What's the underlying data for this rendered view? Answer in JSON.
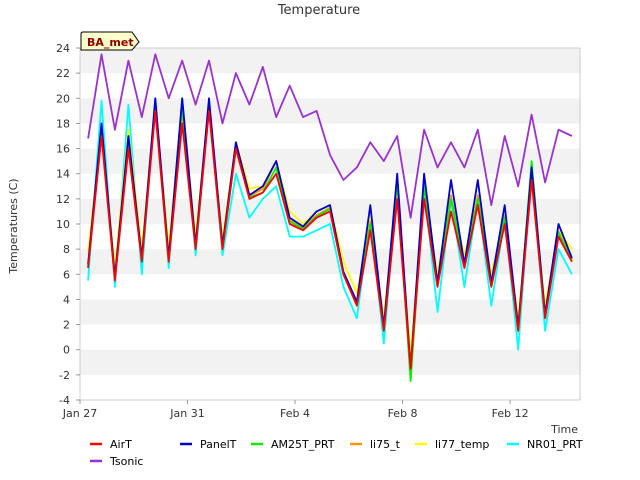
{
  "chart_data": {
    "type": "line",
    "title": "Temperature",
    "xlabel": "Time",
    "ylabel": "Temperatures (C)",
    "badge": "BA_met",
    "ylim": [
      -4,
      24
    ],
    "yticks": [
      -4,
      -2,
      0,
      2,
      4,
      6,
      8,
      10,
      12,
      14,
      16,
      18,
      20,
      22,
      24
    ],
    "xlim": [
      0,
      18.6
    ],
    "xticks": [
      {
        "value": 0,
        "label": "Jan 27"
      },
      {
        "value": 4,
        "label": "Jan 31"
      },
      {
        "value": 8,
        "label": "Feb 4"
      },
      {
        "value": 12,
        "label": "Feb 8"
      },
      {
        "value": 16,
        "label": "Feb 12"
      }
    ],
    "grid": "horizontal bands",
    "legend_position": "bottom",
    "x_start": 0.3,
    "x_step": 0.5,
    "series": [
      {
        "name": "AirT",
        "color": "#ff0000",
        "values": [
          6.5,
          17,
          5.5,
          16,
          7,
          19,
          7,
          18,
          8,
          19,
          8,
          16,
          12,
          12.5,
          14,
          10,
          9.5,
          10.5,
          11,
          6,
          3.5,
          9.5,
          1.5,
          12,
          -1.5,
          12,
          5,
          11,
          6.5,
          11.5,
          5,
          10,
          1.5,
          13.5,
          2.5,
          9,
          7
        ]
      },
      {
        "name": "PanelT",
        "color": "#0000cc",
        "values": [
          6.8,
          18,
          5.8,
          17,
          7.3,
          20,
          7.3,
          20,
          8.3,
          20,
          8.3,
          16.5,
          12.3,
          13,
          15,
          10.5,
          9.8,
          11,
          11.5,
          6.2,
          3.8,
          11.5,
          1.8,
          14,
          -1.5,
          14,
          5.3,
          13.5,
          6.8,
          13.5,
          5.3,
          11.5,
          1.8,
          14.5,
          2.8,
          10,
          7.3
        ]
      },
      {
        "name": "AM25T_PRT",
        "color": "#00ee00",
        "values": [
          6.6,
          17.5,
          5.6,
          16.5,
          7.1,
          19.5,
          7.1,
          19.5,
          8.1,
          19.5,
          8.1,
          16,
          12.1,
          12.5,
          14.5,
          10.2,
          9.6,
          10.6,
          11.2,
          6,
          3.5,
          10,
          1.6,
          13.5,
          -2.5,
          13,
          5.1,
          12,
          6.6,
          12,
          5.1,
          10.5,
          1.6,
          15,
          2.6,
          9.3,
          7.1
        ]
      },
      {
        "name": "li75_t",
        "color": "#ff9900",
        "values": [
          6.7,
          17.5,
          5.7,
          17,
          7.2,
          19.5,
          7.2,
          19,
          8.2,
          19.5,
          8.2,
          16.5,
          12.2,
          12.8,
          15,
          10.3,
          9.7,
          10.7,
          11.3,
          6.1,
          3.6,
          10.2,
          1.7,
          13.2,
          -1.5,
          13.2,
          5.2,
          12.3,
          6.7,
          12.3,
          5.2,
          10.7,
          1.7,
          14,
          2.7,
          9.4,
          7.2
        ]
      },
      {
        "name": "li77_temp",
        "color": "#ffff00",
        "values": [
          7.8,
          17.5,
          6.5,
          17.5,
          8,
          19.5,
          8.2,
          19.5,
          9,
          19.5,
          8.8,
          16.5,
          12.8,
          13,
          15,
          11,
          10,
          11,
          11.5,
          7,
          4.5,
          10.5,
          2.5,
          13,
          -0.5,
          13,
          6,
          12,
          7.5,
          12,
          6,
          10.5,
          2.5,
          13.5,
          3.5,
          9.5,
          8
        ]
      },
      {
        "name": "NR01_PRT",
        "color": "#00ffff",
        "values": [
          5.5,
          19.8,
          5,
          19.5,
          6,
          20,
          6.5,
          20,
          7.5,
          19.5,
          7.5,
          14,
          10.5,
          12,
          13,
          9,
          9,
          9.5,
          10,
          5,
          2.5,
          10.5,
          0.5,
          13,
          -1.5,
          13,
          3,
          12,
          5,
          12,
          3.5,
          10.5,
          0,
          14.5,
          1.5,
          8,
          6
        ]
      },
      {
        "name": "Tsonic",
        "color": "#9933cc",
        "values": [
          16.8,
          23.5,
          17.5,
          23,
          18.5,
          23.5,
          20,
          23,
          19.5,
          23,
          18,
          22,
          19.5,
          22.5,
          18.5,
          21,
          18.5,
          19,
          15.5,
          13.5,
          14.5,
          16.5,
          15,
          17,
          10.5,
          17.5,
          14.5,
          16.5,
          14.5,
          17.5,
          11.5,
          17,
          13,
          18.7,
          13.3,
          17.5,
          17
        ]
      }
    ]
  }
}
